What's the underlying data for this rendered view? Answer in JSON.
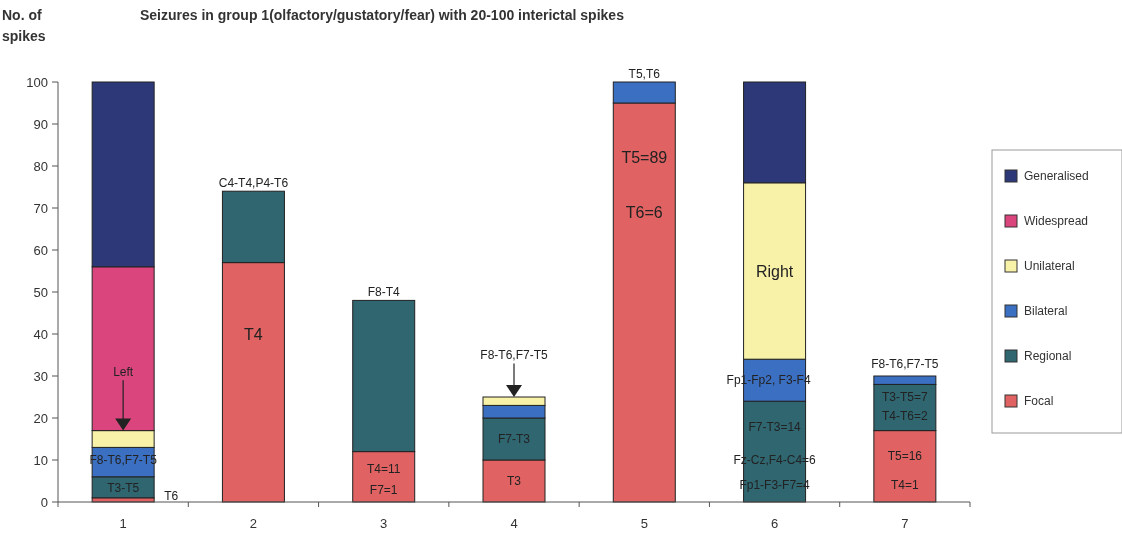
{
  "chart_data": {
    "type": "bar",
    "stacked": true,
    "title": "Seizures in group 1(olfactory/gustatory/fear)  with 20-100 interictal spikes",
    "ylabel": "No. of spikes",
    "categories": [
      "1",
      "2",
      "3",
      "4",
      "5",
      "6",
      "7"
    ],
    "series": [
      {
        "name": "Focal",
        "color": "#e06262",
        "values": [
          1,
          57,
          12,
          10,
          95,
          0,
          17
        ]
      },
      {
        "name": "Regional",
        "color": "#2f6670",
        "values": [
          5,
          17,
          36,
          10,
          0,
          24,
          11
        ]
      },
      {
        "name": "Bilateral",
        "color": "#3b6fc2",
        "values": [
          7,
          0,
          0,
          3,
          5,
          10,
          2
        ]
      },
      {
        "name": "Unilateral",
        "color": "#f7f2a8",
        "values": [
          4,
          0,
          0,
          2,
          0,
          42,
          0
        ]
      },
      {
        "name": "Widespread",
        "color": "#d9457c",
        "values": [
          39,
          0,
          0,
          0,
          0,
          0,
          0
        ]
      },
      {
        "name": "Generalised",
        "color": "#2d3878",
        "values": [
          44,
          0,
          0,
          0,
          0,
          24,
          0
        ]
      }
    ],
    "ylim": [
      0,
      100
    ],
    "yticks": [
      0,
      10,
      20,
      30,
      40,
      50,
      60,
      70,
      80,
      90,
      100
    ],
    "grid": false,
    "legend": "right",
    "annotations": [
      "T3-T5",
      "T6",
      "F8-T6,F7-T5",
      "Left",
      "T4",
      "C4-T4,P4-T6",
      "F8-T4",
      "T4=11",
      "F7=1",
      "F8-T6,F7-T5",
      "F7-T3",
      "T3",
      "T5,T6",
      "T5=89",
      "T6=6",
      "Right",
      "Fp1-Fp2, F3-F4",
      "F7-T3=14",
      "Fz-Cz,F4-C4=6",
      "Fp1-F3-F7=4",
      "F8-T6,F7-T5",
      "T3-T5=7",
      "T4-T6=2",
      "T5=16",
      "T4=1"
    ]
  }
}
